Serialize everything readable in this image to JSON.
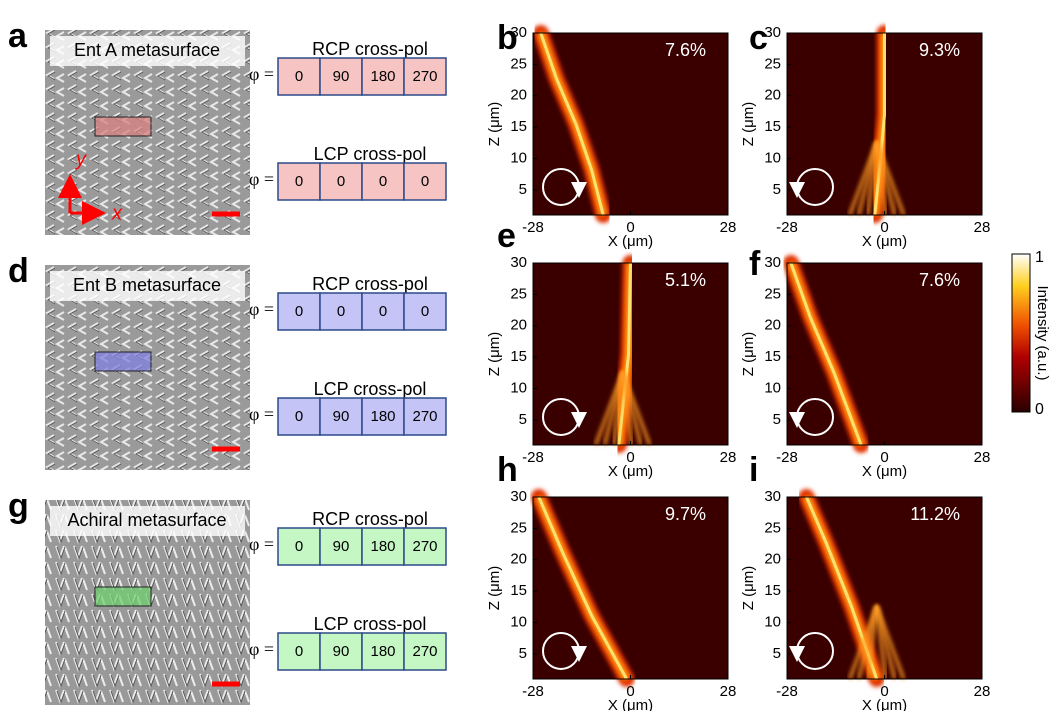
{
  "left_panels": [
    {
      "letter": "a",
      "image_label": "Ent A metasurface",
      "axis_y": "y",
      "axis_x": "x",
      "color": "#f7c4c4",
      "hl": "#d98080",
      "tables": [
        {
          "title": "RCP cross-pol",
          "phi_label": "φ =",
          "cells": [
            0,
            90,
            180,
            270
          ]
        },
        {
          "title": "LCP cross-pol",
          "phi_label": "φ =",
          "cells": [
            0,
            0,
            0,
            0
          ]
        }
      ]
    },
    {
      "letter": "d",
      "image_label": "Ent B metasurface",
      "color": "#c4c4f7",
      "hl": "#8080e0",
      "tables": [
        {
          "title": "RCP cross-pol",
          "phi_label": "φ =",
          "cells": [
            0,
            0,
            0,
            0
          ]
        },
        {
          "title": "LCP cross-pol",
          "phi_label": "φ =",
          "cells": [
            0,
            90,
            180,
            270
          ]
        }
      ]
    },
    {
      "letter": "g",
      "image_label": "Achiral metasurface",
      "color": "#c4f7c4",
      "hl": "#70d070",
      "tables": [
        {
          "title": "RCP cross-pol",
          "phi_label": "φ =",
          "cells": [
            0,
            90,
            180,
            270
          ]
        },
        {
          "title": "LCP cross-pol",
          "phi_label": "φ =",
          "cells": [
            0,
            90,
            180,
            270
          ]
        }
      ]
    }
  ],
  "plot_axes": {
    "xlabel": "X (μm)",
    "ylabel": "Z (μm)",
    "xlim": [
      -28,
      28
    ],
    "ylim": [
      1,
      30
    ],
    "xticks": [
      -28,
      0,
      28
    ],
    "yticks": [
      5,
      10,
      15,
      20,
      25,
      30
    ]
  },
  "plots": [
    {
      "letter": "b",
      "efficiency": "7.6%"
    },
    {
      "letter": "c",
      "efficiency": "9.3%"
    },
    {
      "letter": "e",
      "efficiency": "5.1%"
    },
    {
      "letter": "f",
      "efficiency": "7.6%"
    },
    {
      "letter": "h",
      "efficiency": "9.7%"
    },
    {
      "letter": "i",
      "efficiency": "11.2%"
    }
  ],
  "colorbar": {
    "label": "Intensity (a.u.)",
    "max": 1,
    "min": 0
  }
}
